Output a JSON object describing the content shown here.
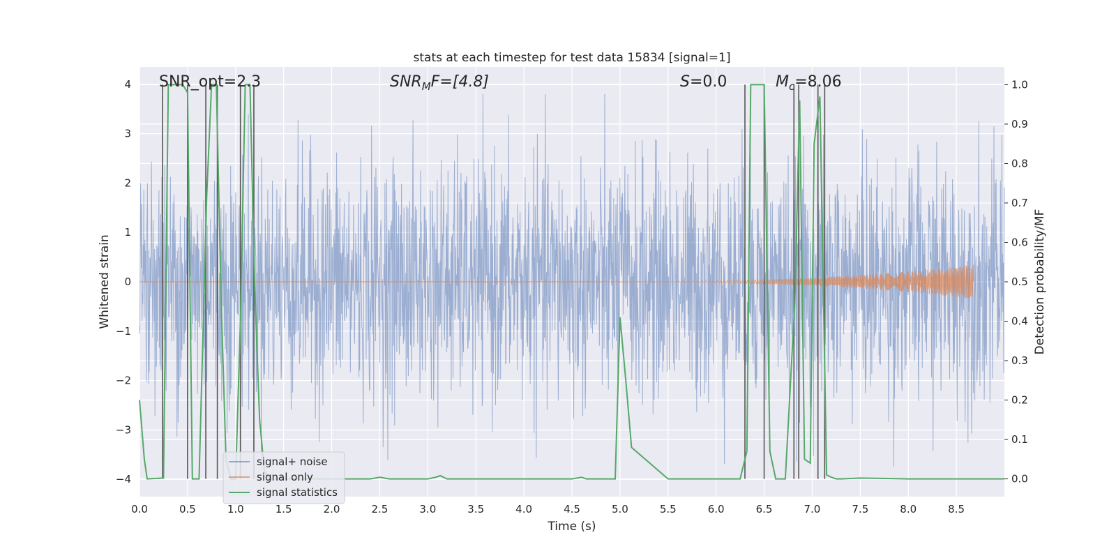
{
  "chart_data": {
    "type": "line",
    "title": "stats at each timestep for test data 15834 [signal=1]",
    "xlabel": "Time (s)",
    "ylabel_left": "Whitened strain",
    "ylabel_right": "Detection probability/MF",
    "xlim": [
      0,
      9.0
    ],
    "ylim_left": [
      -4.35,
      4.35
    ],
    "ylim_right": [
      -0.045,
      1.045
    ],
    "x_ticks": [
      0,
      0.5,
      1,
      1.5,
      2,
      2.5,
      3,
      3.5,
      4,
      4.5,
      5,
      5.5,
      6,
      6.5,
      7,
      7.5,
      8,
      8.5
    ],
    "x_tick_labels": [
      "0.0",
      "0.5",
      "1.0",
      "1.5",
      "2.0",
      "2.5",
      "3.0",
      "3.5",
      "4.0",
      "4.5",
      "5.0",
      "5.5",
      "6.0",
      "6.5",
      "7.0",
      "7.5",
      "8.0",
      "8.5"
    ],
    "y_left_ticks": [
      -4,
      -3,
      -2,
      -1,
      0,
      1,
      2,
      3,
      4
    ],
    "y_left_tick_labels": [
      "−4",
      "−3",
      "−2",
      "−1",
      "0",
      "1",
      "2",
      "3",
      "4"
    ],
    "y_right_ticks": [
      0,
      0.1,
      0.2,
      0.3,
      0.4,
      0.5,
      0.6,
      0.7,
      0.8,
      0.9,
      1.0
    ],
    "y_right_tick_labels": [
      "0.0",
      "0.1",
      "0.2",
      "0.3",
      "0.4",
      "0.5",
      "0.6",
      "0.7",
      "0.8",
      "0.9",
      "1.0"
    ],
    "annotations": {
      "snr_opt": "SNR_opt=2.3",
      "snr_mf_main": "SNR",
      "snr_mf_sub": "M",
      "snr_mf_tail": "F=[4.8]",
      "s_main": "S",
      "s_tail": "=0.0",
      "mc_main": "M",
      "mc_sub": "c",
      "mc_tail": "=8.06"
    },
    "legend": {
      "location": "lower-left",
      "entries": [
        "signal+ noise",
        "signal only",
        "signal statistics"
      ]
    },
    "series": [
      {
        "name": "signal+ noise",
        "axis": "left",
        "kind": "noise",
        "x_range": [
          0,
          9.0
        ],
        "typical_amplitude": 1.2,
        "max_amplitude": 3.8,
        "color": "#4c72b0"
      },
      {
        "name": "signal only",
        "axis": "left",
        "kind": "chirp",
        "x_start": 4.8,
        "x_end": 8.68,
        "max_amplitude": 0.35,
        "color": "#dd8452"
      },
      {
        "name": "signal statistics",
        "axis": "right",
        "color": "#55a868",
        "x": [
          0.0,
          0.05,
          0.08,
          0.25,
          0.3,
          0.45,
          0.5,
          0.55,
          0.62,
          0.7,
          0.75,
          0.8,
          0.85,
          0.9,
          0.95,
          1.0,
          1.05,
          1.1,
          1.15,
          1.2,
          1.25,
          1.3,
          1.35,
          1.4,
          1.5,
          2.0,
          2.4,
          2.5,
          2.6,
          3.0,
          3.08,
          3.13,
          3.2,
          3.5,
          4.0,
          4.5,
          4.6,
          4.65,
          4.7,
          4.95,
          5.0,
          5.06,
          5.12,
          5.5,
          6.0,
          6.25,
          6.32,
          6.36,
          6.5,
          6.56,
          6.62,
          6.72,
          6.82,
          6.87,
          6.92,
          6.98,
          7.02,
          7.08,
          7.15,
          7.2,
          7.25,
          7.3,
          7.5,
          8.0,
          8.5,
          9.0
        ],
        "y": [
          0.2,
          0.05,
          0.0,
          0.002,
          1.0,
          1.0,
          0.98,
          0.0,
          0.0,
          0.72,
          1.0,
          1.0,
          0.45,
          0.05,
          0.0,
          0.0,
          0.4,
          1.0,
          1.0,
          0.48,
          0.15,
          0.02,
          0.0,
          0.0,
          0.0,
          0.0,
          0.0,
          0.004,
          0.0,
          0.0,
          0.004,
          0.008,
          0.0,
          0.0,
          0.0,
          0.0,
          0.004,
          0.0,
          0.0,
          0.0,
          0.41,
          0.25,
          0.08,
          0.0,
          0.0,
          0.0,
          0.07,
          1.0,
          1.0,
          0.07,
          0.0,
          0.0,
          0.45,
          0.96,
          0.05,
          0.04,
          0.85,
          0.97,
          0.01,
          0.004,
          0.0,
          0.0,
          0.002,
          0.0,
          0.0,
          0.0
        ]
      },
      {
        "name": "MF peak markers",
        "axis": "right",
        "kind": "vlines",
        "color": "#555555",
        "x": [
          0.24,
          0.5,
          0.69,
          0.81,
          1.05,
          1.19,
          6.3,
          6.5,
          6.81,
          6.86,
          7.06,
          7.13
        ]
      }
    ],
    "grid": true,
    "background": "#eaeaf2"
  }
}
